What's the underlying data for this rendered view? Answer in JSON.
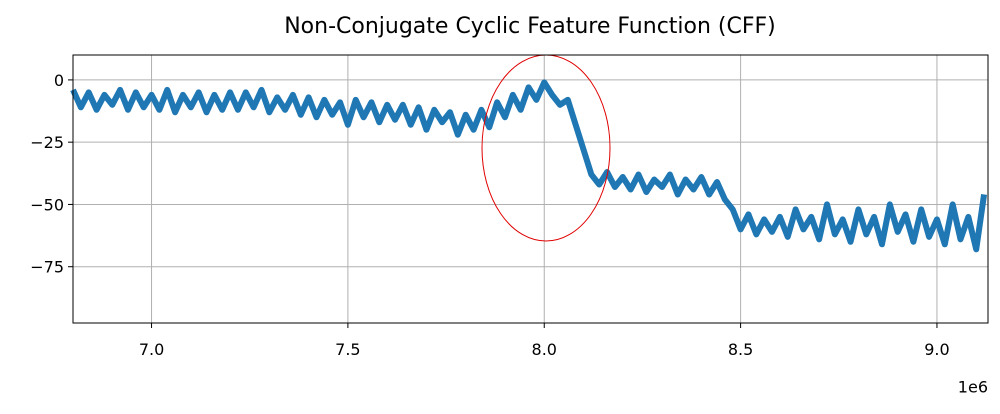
{
  "chart_data": {
    "type": "line",
    "title": "Non-Conjugate Cyclic Feature Function (CFF)",
    "x_offset_label": "1e6",
    "color": "#1f77b4",
    "grid": true,
    "xlim": [
      6800000,
      9130000
    ],
    "ylim": [
      -97.6,
      10
    ],
    "xticks": [
      {
        "value": 7000000,
        "label": "7.0"
      },
      {
        "value": 7500000,
        "label": "7.5"
      },
      {
        "value": 8000000,
        "label": "8.0"
      },
      {
        "value": 8500000,
        "label": "8.5"
      },
      {
        "value": 9000000,
        "label": "9.0"
      }
    ],
    "yticks": [
      0,
      {
        "value": -25,
        "label": "−25"
      },
      {
        "value": -50,
        "label": "−50"
      },
      {
        "value": -75,
        "label": "−75"
      }
    ],
    "x": [
      6800000,
      6820000,
      6840000,
      6860000,
      6880000,
      6900000,
      6920000,
      6940000,
      6960000,
      6980000,
      7000000,
      7020000,
      7040000,
      7060000,
      7080000,
      7100000,
      7120000,
      7140000,
      7160000,
      7180000,
      7200000,
      7220000,
      7240000,
      7260000,
      7280000,
      7300000,
      7320000,
      7340000,
      7360000,
      7380000,
      7400000,
      7420000,
      7440000,
      7460000,
      7480000,
      7500000,
      7520000,
      7540000,
      7560000,
      7580000,
      7600000,
      7620000,
      7640000,
      7660000,
      7680000,
      7700000,
      7720000,
      7740000,
      7760000,
      7780000,
      7800000,
      7820000,
      7840000,
      7860000,
      7880000,
      7900000,
      7920000,
      7940000,
      7960000,
      7980000,
      8000000,
      8020000,
      8040000,
      8060000,
      8080000,
      8100000,
      8120000,
      8140000,
      8160000,
      8180000,
      8200000,
      8220000,
      8240000,
      8260000,
      8280000,
      8300000,
      8320000,
      8340000,
      8360000,
      8380000,
      8400000,
      8420000,
      8440000,
      8460000,
      8480000,
      8500000,
      8520000,
      8540000,
      8560000,
      8580000,
      8600000,
      8620000,
      8640000,
      8660000,
      8680000,
      8700000,
      8720000,
      8740000,
      8760000,
      8780000,
      8800000,
      8820000,
      8840000,
      8860000,
      8880000,
      8900000,
      8920000,
      8940000,
      8960000,
      8980000,
      9000000,
      9020000,
      9040000,
      9060000,
      9080000,
      9100000,
      9120000
    ],
    "values": [
      -4,
      -11,
      -5,
      -12,
      -6,
      -10,
      -4,
      -12,
      -5,
      -11,
      -6,
      -12,
      -4,
      -13,
      -6,
      -11,
      -5,
      -13,
      -6,
      -12,
      -5,
      -12,
      -5,
      -11,
      -4,
      -13,
      -7,
      -12,
      -6,
      -14,
      -7,
      -15,
      -8,
      -14,
      -9,
      -18,
      -8,
      -15,
      -9,
      -17,
      -10,
      -16,
      -10,
      -18,
      -11,
      -20,
      -12,
      -17,
      -13,
      -22,
      -14,
      -20,
      -12,
      -19,
      -9,
      -15,
      -6,
      -12,
      -3,
      -8,
      -1,
      -6,
      -10,
      -8,
      -18,
      -28,
      -38,
      -42,
      -37,
      -43,
      -39,
      -44,
      -38,
      -45,
      -40,
      -43,
      -38,
      -46,
      -40,
      -44,
      -39,
      -46,
      -41,
      -48,
      -52,
      -60,
      -54,
      -62,
      -56,
      -61,
      -55,
      -63,
      -52,
      -60,
      -55,
      -64,
      -50,
      -62,
      -56,
      -65,
      -52,
      -62,
      -55,
      -66,
      -50,
      -61,
      -54,
      -65,
      -52,
      -63,
      -56,
      -66,
      -50,
      -64,
      -55,
      -68,
      -46
    ]
  }
}
